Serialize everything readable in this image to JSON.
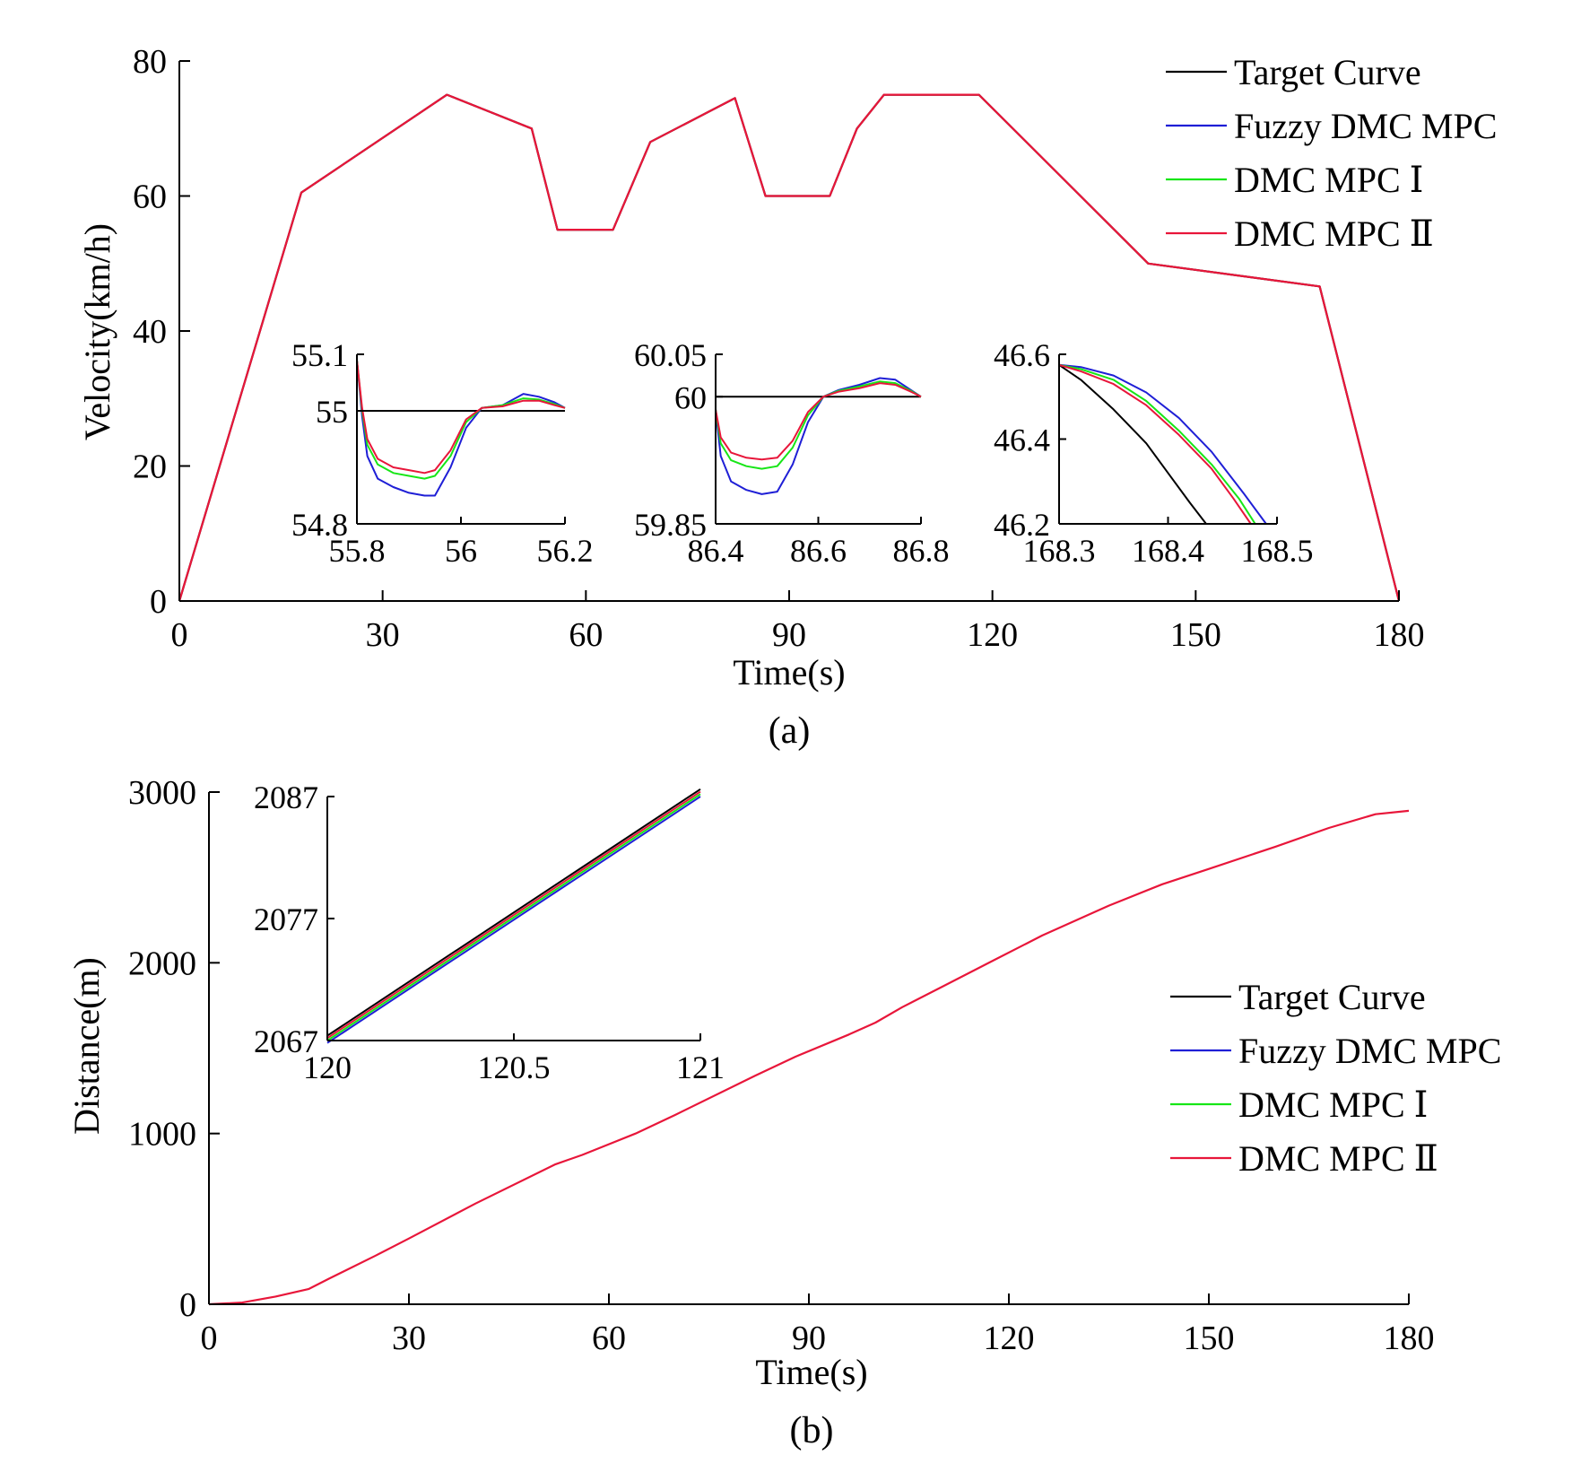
{
  "figure": {
    "caption_a": "(a)",
    "caption_b": "(b)"
  },
  "legend": [
    {
      "label": "Target Curve",
      "color": "#000000"
    },
    {
      "label": "Fuzzy DMC MPC",
      "color": "#1f1fd6"
    },
    {
      "label": "DMC MPC Ⅰ",
      "color": "#17e617"
    },
    {
      "label": "DMC MPC Ⅱ",
      "color": "#e8163a"
    }
  ],
  "chart_data": [
    {
      "id": "a-main",
      "type": "line",
      "title": "",
      "caption": "(a)",
      "xlabel": "Time(s)",
      "ylabel": "Velocity(km/h)",
      "xlim": [
        0,
        180
      ],
      "ylim": [
        0,
        80
      ],
      "xticks": [
        0,
        30,
        60,
        90,
        120,
        150,
        180
      ],
      "yticks": [
        0,
        20,
        40,
        60,
        80
      ],
      "legend_position": "top-right",
      "series": [
        {
          "name": "Target Curve",
          "color": "#000000",
          "x": [
            0,
            18,
            39.5,
            52,
            55.8,
            64,
            69.5,
            82,
            86.5,
            96,
            100,
            104,
            118,
            143,
            168.3,
            180
          ],
          "y": [
            0,
            60.5,
            75,
            70,
            55,
            55,
            68,
            74.5,
            60,
            60,
            70,
            75,
            75,
            50,
            46.6,
            0
          ]
        },
        {
          "name": "DMC MPC Ⅱ",
          "color": "#e8163a",
          "x": [
            0,
            18,
            39.5,
            52,
            55.8,
            64,
            69.5,
            82,
            86.5,
            96,
            100,
            104,
            118,
            143,
            168.3,
            180
          ],
          "y": [
            0,
            60.5,
            75,
            70,
            55,
            55,
            68,
            74.5,
            60,
            60,
            70,
            75,
            75,
            50,
            46.6,
            0
          ]
        }
      ]
    },
    {
      "id": "a-inset-1",
      "type": "line",
      "xlim": [
        55.8,
        56.2
      ],
      "ylim": [
        54.8,
        55.1
      ],
      "xticks": [
        55.8,
        56,
        56.2
      ],
      "yticks": [
        54.8,
        55,
        55.1
      ],
      "series": [
        {
          "name": "Target Curve",
          "color": "#000000",
          "x": [
            55.8,
            56.2
          ],
          "y": [
            55,
            55
          ]
        },
        {
          "name": "Fuzzy DMC MPC",
          "color": "#1f1fd6",
          "x": [
            55.8,
            55.81,
            55.82,
            55.84,
            55.87,
            55.9,
            55.93,
            55.95,
            55.98,
            56.01,
            56.04,
            56.08,
            56.12,
            56.15,
            56.18,
            56.2
          ],
          "y": [
            55.09,
            54.99,
            54.92,
            54.88,
            54.865,
            54.855,
            54.85,
            54.85,
            54.9,
            54.97,
            55.005,
            55.01,
            55.03,
            55.025,
            55.015,
            55.005
          ]
        },
        {
          "name": "DMC MPC Ⅰ",
          "color": "#17e617",
          "x": [
            55.8,
            55.81,
            55.82,
            55.84,
            55.87,
            55.9,
            55.93,
            55.95,
            55.98,
            56.01,
            56.04,
            56.08,
            56.12,
            56.15,
            56.18,
            56.2
          ],
          "y": [
            55.09,
            55.0,
            54.94,
            54.905,
            54.89,
            54.885,
            54.88,
            54.885,
            54.92,
            54.98,
            55.005,
            55.01,
            55.022,
            55.02,
            55.012,
            55.005
          ]
        },
        {
          "name": "DMC MPC Ⅱ",
          "color": "#e8163a",
          "x": [
            55.8,
            55.81,
            55.82,
            55.84,
            55.87,
            55.9,
            55.93,
            55.95,
            55.98,
            56.01,
            56.04,
            56.08,
            56.12,
            56.15,
            56.18,
            56.2
          ],
          "y": [
            55.09,
            55.005,
            54.95,
            54.915,
            54.9,
            54.895,
            54.89,
            54.895,
            54.93,
            54.985,
            55.005,
            55.008,
            55.018,
            55.018,
            55.01,
            55.005
          ]
        }
      ]
    },
    {
      "id": "a-inset-2",
      "type": "line",
      "xlim": [
        86.4,
        86.8
      ],
      "ylim": [
        59.85,
        60.05
      ],
      "xticks": [
        86.4,
        86.6,
        86.8
      ],
      "yticks": [
        59.85,
        60,
        60.05
      ],
      "series": [
        {
          "name": "Target Curve",
          "color": "#000000",
          "x": [
            86.4,
            86.8
          ],
          "y": [
            60,
            60
          ]
        },
        {
          "name": "Fuzzy DMC MPC",
          "color": "#1f1fd6",
          "x": [
            86.4,
            86.41,
            86.43,
            86.46,
            86.49,
            86.52,
            86.55,
            86.58,
            86.61,
            86.64,
            86.68,
            86.72,
            86.75,
            86.78,
            86.8
          ],
          "y": [
            59.985,
            59.93,
            59.9,
            59.89,
            59.885,
            59.888,
            59.92,
            59.97,
            60.0,
            60.008,
            60.014,
            60.022,
            60.02,
            60.008,
            60.0
          ]
        },
        {
          "name": "DMC MPC Ⅰ",
          "color": "#17e617",
          "x": [
            86.4,
            86.41,
            86.43,
            86.46,
            86.49,
            86.52,
            86.55,
            86.58,
            86.61,
            86.64,
            86.68,
            86.72,
            86.75,
            86.78,
            86.8
          ],
          "y": [
            59.985,
            59.945,
            59.925,
            59.918,
            59.915,
            59.918,
            59.94,
            59.978,
            60.0,
            60.007,
            60.012,
            60.018,
            60.016,
            60.007,
            60.0
          ]
        },
        {
          "name": "DMC MPC Ⅱ",
          "color": "#e8163a",
          "x": [
            86.4,
            86.41,
            86.43,
            86.46,
            86.49,
            86.52,
            86.55,
            86.58,
            86.61,
            86.64,
            86.68,
            86.72,
            86.75,
            86.78,
            86.8
          ],
          "y": [
            59.985,
            59.952,
            59.934,
            59.928,
            59.926,
            59.928,
            59.948,
            59.982,
            60.0,
            60.006,
            60.01,
            60.016,
            60.014,
            60.006,
            60.0
          ]
        }
      ]
    },
    {
      "id": "a-inset-3",
      "type": "line",
      "xlim": [
        168.3,
        168.5
      ],
      "ylim": [
        46.2,
        46.6
      ],
      "xticks": [
        168.3,
        168.4,
        168.5
      ],
      "yticks": [
        46.2,
        46.4,
        46.6
      ],
      "series": [
        {
          "name": "Target Curve",
          "color": "#000000",
          "x": [
            168.3,
            168.32,
            168.35,
            168.38,
            168.4,
            168.42,
            168.435
          ],
          "y": [
            46.575,
            46.54,
            46.47,
            46.39,
            46.32,
            46.25,
            46.2
          ]
        },
        {
          "name": "Fuzzy DMC MPC",
          "color": "#1f1fd6",
          "x": [
            168.3,
            168.32,
            168.35,
            168.38,
            168.41,
            168.44,
            168.47,
            168.49
          ],
          "y": [
            46.575,
            46.57,
            46.55,
            46.51,
            46.45,
            46.37,
            46.27,
            46.2
          ]
        },
        {
          "name": "DMC MPC Ⅰ",
          "color": "#17e617",
          "x": [
            168.3,
            168.32,
            168.35,
            168.38,
            168.41,
            168.44,
            168.465,
            168.48
          ],
          "y": [
            46.575,
            46.565,
            46.54,
            46.49,
            46.42,
            46.34,
            46.26,
            46.2
          ]
        },
        {
          "name": "DMC MPC Ⅱ",
          "color": "#e8163a",
          "x": [
            168.3,
            168.32,
            168.35,
            168.38,
            168.41,
            168.44,
            168.46,
            168.476
          ],
          "y": [
            46.575,
            46.56,
            46.53,
            46.48,
            46.41,
            46.33,
            46.26,
            46.2
          ]
        }
      ]
    },
    {
      "id": "b-main",
      "type": "line",
      "title": "",
      "caption": "(b)",
      "xlabel": "Time(s)",
      "ylabel": "Distance(m)",
      "xlim": [
        0,
        180
      ],
      "ylim": [
        0,
        3000
      ],
      "xticks": [
        0,
        30,
        60,
        90,
        120,
        150,
        180
      ],
      "yticks": [
        0,
        1000,
        2000,
        3000
      ],
      "legend_position": "center-right",
      "series": [
        {
          "name": "DMC MPC Ⅱ",
          "color": "#e8163a",
          "x": [
            0,
            5,
            10,
            15,
            18,
            25,
            30,
            40,
            52,
            56,
            64,
            70,
            82,
            88,
            96,
            100,
            104,
            110,
            118,
            125,
            135,
            143,
            150,
            160,
            168,
            175,
            180
          ],
          "y": [
            0,
            10,
            45,
            90,
            150,
            285,
            385,
            590,
            820,
            875,
            1000,
            1110,
            1340,
            1450,
            1580,
            1650,
            1740,
            1860,
            2020,
            2160,
            2335,
            2460,
            2550,
            2680,
            2790,
            2870,
            2890
          ]
        }
      ]
    },
    {
      "id": "b-inset",
      "type": "line",
      "xlim": [
        120,
        121
      ],
      "ylim": [
        2067,
        2087
      ],
      "xticks": [
        120,
        120.5,
        121
      ],
      "yticks": [
        2067,
        2077,
        2087
      ],
      "series": [
        {
          "name": "Target Curve",
          "color": "#000000",
          "x": [
            120,
            121
          ],
          "y": [
            2067.4,
            2087.6
          ]
        },
        {
          "name": "Fuzzy DMC MPC",
          "color": "#1f1fd6",
          "x": [
            120,
            121
          ],
          "y": [
            2066.8,
            2087.0
          ]
        },
        {
          "name": "DMC MPC Ⅰ",
          "color": "#17e617",
          "x": [
            120,
            121
          ],
          "y": [
            2067.0,
            2087.2
          ]
        },
        {
          "name": "DMC MPC Ⅱ",
          "color": "#e8163a",
          "x": [
            120,
            121
          ],
          "y": [
            2067.2,
            2087.4
          ]
        }
      ]
    }
  ]
}
